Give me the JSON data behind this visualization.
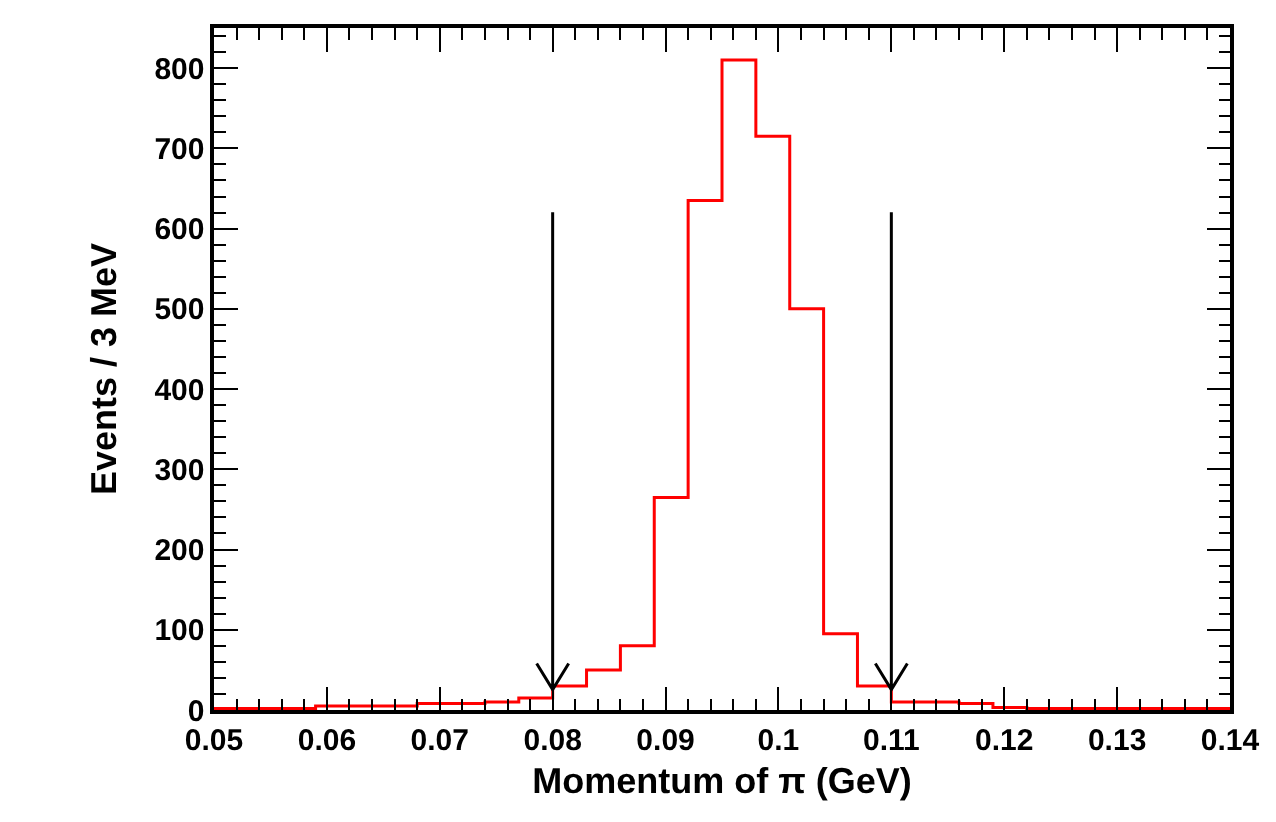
{
  "chart_data": {
    "type": "histogram",
    "xlabel": "Momentum of π (GeV)",
    "ylabel": "Events / 3 MeV",
    "bins": [
      0.05,
      0.053,
      0.056,
      0.059,
      0.062,
      0.065,
      0.068,
      0.071,
      0.074,
      0.077,
      0.08,
      0.083,
      0.086,
      0.089,
      0.092,
      0.095,
      0.098,
      0.101,
      0.104,
      0.107,
      0.11,
      0.113,
      0.116,
      0.119,
      0.122,
      0.125,
      0.128,
      0.131,
      0.134,
      0.137,
      0.14
    ],
    "values": [
      2,
      2,
      2,
      5,
      5,
      5,
      8,
      8,
      10,
      15,
      30,
      50,
      80,
      265,
      635,
      810,
      715,
      500,
      95,
      30,
      10,
      10,
      8,
      3,
      2,
      2,
      2,
      2,
      2,
      2
    ],
    "color": "#ff0000",
    "xlim": [
      0.05,
      0.14
    ],
    "xticks": [
      0.05,
      0.06,
      0.07,
      0.08,
      0.09,
      0.1,
      0.11,
      0.12,
      0.13,
      0.14
    ],
    "ylim": [
      0,
      850
    ],
    "yticks": [
      0,
      100,
      200,
      300,
      400,
      500,
      600,
      700,
      800
    ],
    "ref_lines": [
      {
        "axis": "x",
        "value": 0.08
      },
      {
        "axis": "x",
        "value": 0.11
      }
    ]
  }
}
